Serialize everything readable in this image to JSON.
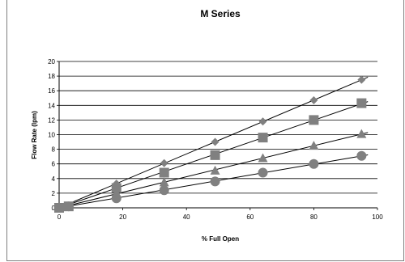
{
  "chart_data": {
    "type": "scatter",
    "title": "M Series",
    "xlabel": "% Full Open",
    "ylabel": "Flow Rate (lpm)",
    "xlim": [
      0,
      100
    ],
    "ylim": [
      0,
      20
    ],
    "x_ticks": [
      0,
      20,
      40,
      60,
      80,
      100
    ],
    "y_ticks": [
      0,
      2,
      4,
      6,
      8,
      10,
      12,
      14,
      16,
      18,
      20
    ],
    "grid": "horizontal",
    "legend": "none",
    "trendlines": true,
    "series": [
      {
        "marker": "diamond",
        "color": "#808080",
        "x": [
          0,
          3,
          18,
          33,
          49,
          64,
          80,
          95
        ],
        "y": [
          0,
          0.2,
          3.3,
          6.1,
          9.0,
          11.8,
          14.7,
          17.5
        ]
      },
      {
        "marker": "square",
        "color": "#808080",
        "x": [
          0,
          3,
          18,
          33,
          49,
          64,
          80,
          95
        ],
        "y": [
          0,
          0.2,
          2.7,
          4.8,
          7.2,
          9.6,
          12.0,
          14.3
        ]
      },
      {
        "marker": "triangle",
        "color": "#808080",
        "x": [
          0,
          3,
          18,
          33,
          49,
          64,
          80,
          95
        ],
        "y": [
          0,
          0.2,
          2.0,
          3.5,
          5.1,
          6.8,
          8.5,
          10.1
        ]
      },
      {
        "marker": "circle",
        "color": "#808080",
        "x": [
          0,
          3,
          18,
          33,
          49,
          64,
          80,
          95
        ],
        "y": [
          0,
          0.2,
          1.3,
          2.4,
          3.6,
          4.8,
          6.0,
          7.1
        ]
      }
    ]
  }
}
